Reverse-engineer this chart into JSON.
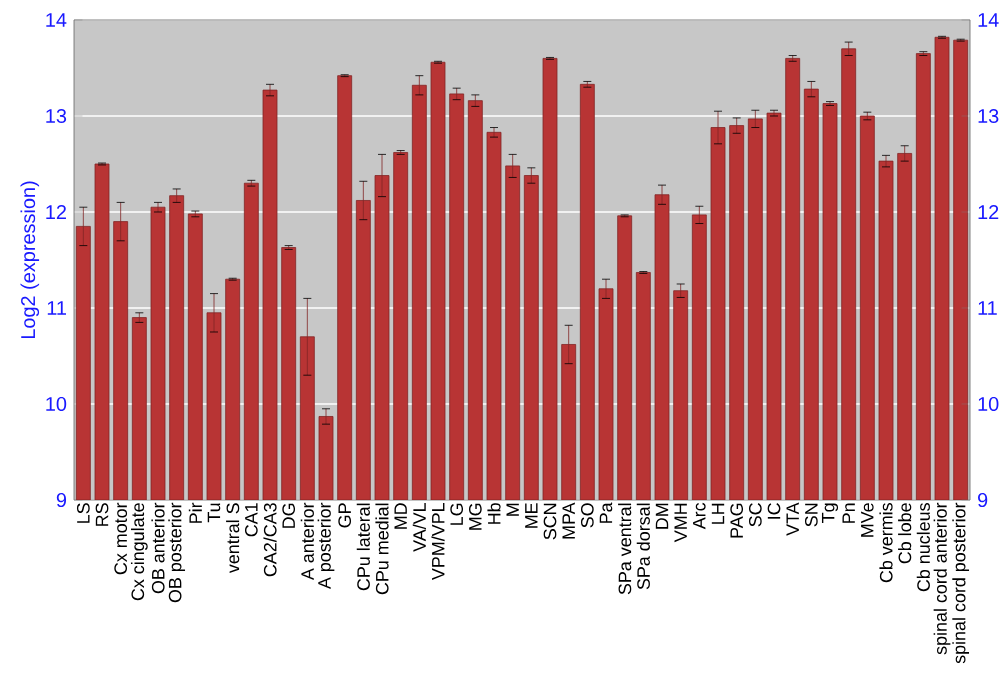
{
  "chart_data": {
    "type": "bar",
    "ylabel": "Log2 (expression)",
    "categories": [
      "LS",
      "RS",
      "Cx motor",
      "Cx cingulate",
      "OB anterior",
      "OB posterior",
      "Pir",
      "Tu",
      "ventral S",
      "CA1",
      "CA2/CA3",
      "DG",
      "A anterior",
      "A posterior",
      "GP",
      "CPu lateral",
      "CPu medial",
      "MD",
      "VA/VL",
      "VPM/VPL",
      "LG",
      "MG",
      "Hb",
      "M",
      "ME",
      "SCN",
      "MPA",
      "SO",
      "Pa",
      "SPa ventral",
      "SPa dorsal",
      "DM",
      "VMH",
      "Arc",
      "LH",
      "PAG",
      "SC",
      "IC",
      "VTA",
      "SN",
      "Tg",
      "Pn",
      "MVe",
      "Cb vermis",
      "Cb lobe",
      "Cb nucleus",
      "spinal cord anterior",
      "spinal cord posterior"
    ],
    "values": [
      11.85,
      12.5,
      11.9,
      10.9,
      12.05,
      12.17,
      11.98,
      10.95,
      11.3,
      12.3,
      13.27,
      11.63,
      10.7,
      9.87,
      13.42,
      12.12,
      12.38,
      12.62,
      13.32,
      13.56,
      13.23,
      13.16,
      12.83,
      12.48,
      12.38,
      13.6,
      10.62,
      13.33,
      11.2,
      11.96,
      11.37,
      12.18,
      11.18,
      11.97,
      12.88,
      12.9,
      12.97,
      13.03,
      13.6,
      13.28,
      13.13,
      13.7,
      13.0,
      12.53,
      12.61,
      13.65,
      13.82,
      13.79
    ],
    "errors": [
      0.2,
      0.01,
      0.2,
      0.05,
      0.05,
      0.07,
      0.03,
      0.2,
      0.01,
      0.03,
      0.06,
      0.02,
      0.4,
      0.08,
      0.01,
      0.2,
      0.22,
      0.02,
      0.1,
      0.01,
      0.06,
      0.06,
      0.05,
      0.12,
      0.08,
      0.01,
      0.2,
      0.03,
      0.1,
      0.01,
      0.01,
      0.1,
      0.07,
      0.09,
      0.17,
      0.08,
      0.09,
      0.03,
      0.03,
      0.08,
      0.02,
      0.07,
      0.04,
      0.06,
      0.08,
      0.02,
      0.01,
      0.01
    ],
    "color": "#b83434",
    "ylim": [
      9,
      14
    ],
    "yticks": [
      9,
      10,
      11,
      12,
      13,
      14
    ],
    "y2lim": [
      9,
      14
    ],
    "y2ticks": [
      9,
      10,
      11,
      12,
      13,
      14
    ],
    "grid": "y"
  }
}
